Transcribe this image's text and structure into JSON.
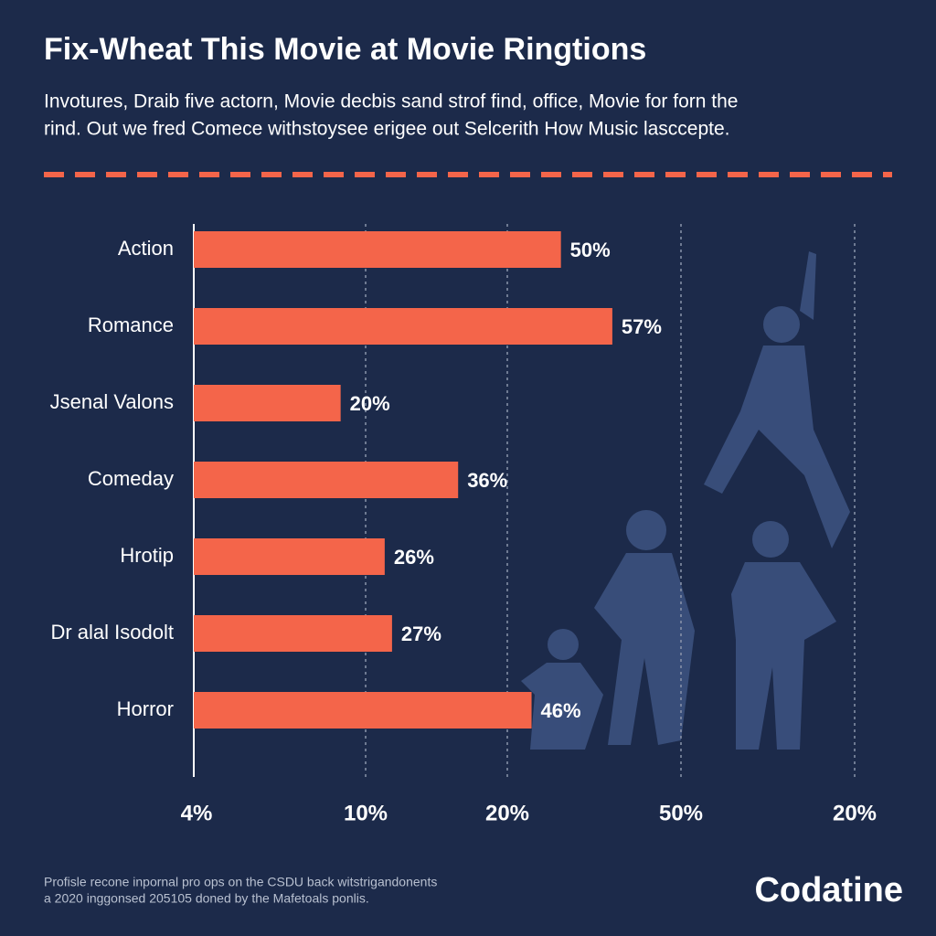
{
  "chart_data": {
    "type": "bar",
    "orientation": "horizontal",
    "title": "Fix-Wheat This Movie at Movie Ringtions",
    "subtitle": [
      "Invotures, Draib five actorn, Movie decbis sand strof find, office, Movie for forn the",
      "rind. Out we fred Comece withstoysee erigee out Selcerith How Music lasccepte."
    ],
    "categories": [
      "Action",
      "Romance",
      "Jsenal Valons",
      "Comeday",
      "Hrotip",
      "Dr alal Isodolt",
      "Horror"
    ],
    "values": [
      50,
      57,
      20,
      36,
      26,
      27,
      46
    ],
    "value_labels": [
      "50%",
      "57%",
      "20%",
      "36%",
      "26%",
      "27%",
      "46%"
    ],
    "color": "#f4654a",
    "xlim": [
      0,
      90
    ],
    "x_axis_labels": [
      "4%",
      "10%",
      "20%",
      "50%",
      "20%"
    ]
  },
  "footer": [
    "Profisle recone inpornal pro ops on the CSDU back witstrigandonents",
    "a 2020 inggonsed 205105 doned by the Mafetoals ponlis."
  ],
  "logo": "Codatine"
}
